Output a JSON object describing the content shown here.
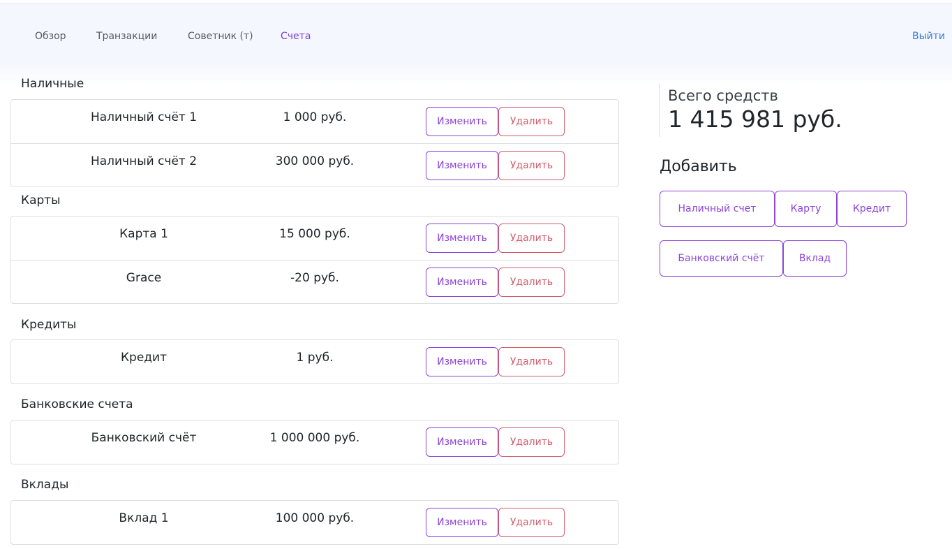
{
  "nav": {
    "items": [
      {
        "label": "Обзор"
      },
      {
        "label": "Транзакции"
      },
      {
        "label": "Советник (т)"
      },
      {
        "label": "Счета"
      }
    ],
    "logout": "Выйти"
  },
  "actions": {
    "edit": "Изменить",
    "delete": "Удалить"
  },
  "groups": [
    {
      "title": "Наличные",
      "accounts": [
        {
          "name": "Наличный счёт 1",
          "amount": "1 000 руб."
        },
        {
          "name": "Наличный счёт 2",
          "amount": "300 000 руб."
        }
      ]
    },
    {
      "title": "Карты",
      "accounts": [
        {
          "name": "Карта 1",
          "amount": "15 000 руб."
        },
        {
          "name": "Grace",
          "amount": "-20 руб."
        }
      ]
    },
    {
      "title": "Кредиты",
      "accounts": [
        {
          "name": "Кредит",
          "amount": "1 руб."
        }
      ]
    },
    {
      "title": "Банковские счета",
      "accounts": [
        {
          "name": "Банковский счёт",
          "amount": "1 000 000 руб."
        }
      ]
    },
    {
      "title": "Вклады",
      "accounts": [
        {
          "name": "Вклад 1",
          "amount": "100 000 руб."
        }
      ]
    }
  ],
  "summary": {
    "label": "Всего средств",
    "value": "1 415 981 руб."
  },
  "add": {
    "title": "Добавить",
    "buttons": [
      {
        "label": "Наличный счет"
      },
      {
        "label": "Карту"
      },
      {
        "label": "Кредит"
      },
      {
        "label": "Банковский счёт"
      },
      {
        "label": "Вклад"
      }
    ]
  },
  "colors": {
    "accent": "#8b44d8",
    "danger": "#d35b6c",
    "link": "#3a7bd5"
  }
}
